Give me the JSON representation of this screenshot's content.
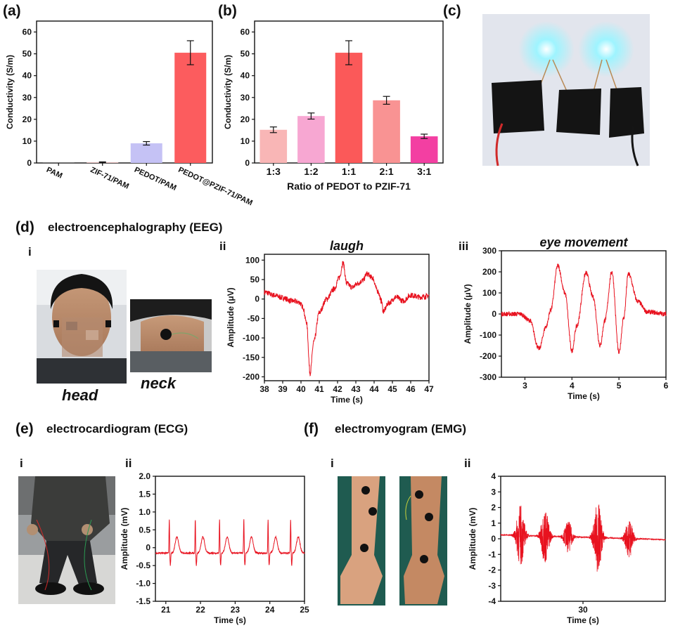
{
  "panels": {
    "a": "(a)",
    "b": "(b)",
    "c": "(c)",
    "d": "(d)",
    "e": "(e)",
    "f": "(f)"
  },
  "headings": {
    "d": "electroencephalography (EEG)",
    "e": "electrocardiogram (ECG)",
    "f": "electromyogram (EMG)"
  },
  "sublabels": {
    "d_i": "i",
    "d_ii": "ii",
    "d_iii": "iii",
    "e_i": "i",
    "e_ii": "ii",
    "f_i": "i",
    "f_ii": "ii"
  },
  "photo_captions": {
    "head": "head",
    "neck": "neck"
  },
  "colors": {
    "signal": "#e8121f",
    "bar_a": [
      "#cccccc",
      "#e5b9b9",
      "#c5c2f5",
      "#fc5c5e"
    ],
    "bar_b": [
      "#f9b6b6",
      "#f7a7d2",
      "#fb5959",
      "#f99393",
      "#f33fa2"
    ]
  },
  "chart_data": [
    {
      "id": "a",
      "type": "bar",
      "categories": [
        "PAM",
        "ZIF-71/PAM",
        "PEDOT/PAM",
        "PEDOT@PZIF-71/PAM"
      ],
      "values": [
        0.05,
        0.3,
        9.0,
        50.5
      ],
      "errors": [
        0,
        0.2,
        0.8,
        5.5
      ],
      "ylabel": "Conductivity (S/m)",
      "xlabel": "",
      "ylim": [
        0,
        65
      ],
      "yticks": [
        0,
        10,
        20,
        30,
        40,
        50,
        60
      ]
    },
    {
      "id": "b",
      "type": "bar",
      "categories": [
        "1:3",
        "1:2",
        "1:1",
        "2:1",
        "3:1"
      ],
      "values": [
        15.2,
        21.5,
        50.5,
        28.7,
        12.2
      ],
      "errors": [
        1.3,
        1.4,
        5.5,
        1.8,
        1.0
      ],
      "ylabel": "Conductivity (S/m)",
      "xlabel": "Ratio of PEDOT to PZIF-71",
      "ylim": [
        0,
        65
      ],
      "yticks": [
        0,
        10,
        20,
        30,
        40,
        50,
        60
      ]
    },
    {
      "id": "d_ii",
      "type": "line",
      "title": "laugh",
      "xlabel": "Time (s)",
      "ylabel": "Amplitude (μV)",
      "xlim": [
        38,
        47
      ],
      "ylim": [
        -210,
        115
      ],
      "xticks": [
        38,
        39,
        40,
        41,
        42,
        43,
        44,
        45,
        46,
        47
      ],
      "yticks": [
        -200,
        -150,
        -100,
        -50,
        0,
        50,
        100
      ],
      "keypoints": [
        [
          38,
          18
        ],
        [
          38.5,
          10
        ],
        [
          39,
          3
        ],
        [
          39.5,
          -5
        ],
        [
          39.9,
          -8
        ],
        [
          40.1,
          -20
        ],
        [
          40.3,
          -60
        ],
        [
          40.5,
          -190
        ],
        [
          40.7,
          -110
        ],
        [
          41,
          -35
        ],
        [
          41.4,
          0
        ],
        [
          41.8,
          25
        ],
        [
          42.1,
          55
        ],
        [
          42.3,
          93
        ],
        [
          42.5,
          40
        ],
        [
          42.8,
          30
        ],
        [
          43.1,
          40
        ],
        [
          43.4,
          48
        ],
        [
          43.6,
          65
        ],
        [
          43.9,
          55
        ],
        [
          44.2,
          20
        ],
        [
          44.4,
          -5
        ],
        [
          44.5,
          -32
        ],
        [
          44.8,
          -10
        ],
        [
          45.2,
          5
        ],
        [
          45.6,
          -5
        ],
        [
          46,
          10
        ],
        [
          46.5,
          5
        ],
        [
          47,
          8
        ]
      ]
    },
    {
      "id": "d_iii",
      "type": "line",
      "title": "eye movement",
      "xlabel": "Time (s)",
      "ylabel": "Amplitude (μV)",
      "xlim": [
        2.5,
        6
      ],
      "ylim": [
        -300,
        300
      ],
      "xticks": [
        3,
        4,
        5,
        6
      ],
      "yticks": [
        -300,
        -200,
        -100,
        0,
        100,
        200,
        300
      ],
      "keypoints": [
        [
          2.5,
          0
        ],
        [
          2.9,
          0
        ],
        [
          3.1,
          -30
        ],
        [
          3.3,
          -165
        ],
        [
          3.45,
          -60
        ],
        [
          3.55,
          20
        ],
        [
          3.7,
          230
        ],
        [
          3.85,
          100
        ],
        [
          4.0,
          -175
        ],
        [
          4.1,
          -60
        ],
        [
          4.3,
          195
        ],
        [
          4.45,
          80
        ],
        [
          4.6,
          -150
        ],
        [
          4.7,
          -30
        ],
        [
          4.85,
          200
        ],
        [
          5.0,
          -185
        ],
        [
          5.1,
          -20
        ],
        [
          5.2,
          190
        ],
        [
          5.4,
          60
        ],
        [
          5.6,
          10
        ],
        [
          6.0,
          0
        ]
      ]
    },
    {
      "id": "e_ii",
      "type": "line",
      "xlabel": "Time (s)",
      "ylabel": "Amplitude (mV)",
      "xlim": [
        20.7,
        25
      ],
      "ylim": [
        -1.5,
        2.0
      ],
      "xticks": [
        21,
        22,
        23,
        24,
        25
      ],
      "yticks": [
        -1.5,
        -1.0,
        -0.5,
        0,
        0.5,
        1.0,
        1.5,
        2.0
      ],
      "yticklabels": [
        "-1.5",
        "-1.0",
        "-0.5",
        "0",
        "0.5",
        "1.0",
        "1.5",
        "2.0"
      ],
      "beats": [
        21.1,
        21.85,
        22.55,
        23.25,
        23.95,
        24.6
      ],
      "beat_peak": 0.95,
      "beat_trough": -0.5,
      "t_wave": 0.45
    },
    {
      "id": "f_ii",
      "type": "line",
      "xlabel": "Time (s)",
      "ylabel": "Amplitude (mV)",
      "xlim": [
        0,
        100
      ],
      "ylim": [
        -4,
        4
      ],
      "xticks": [
        30
      ],
      "xtick_pos": [
        50
      ],
      "yticks": [
        -4,
        -3,
        -2,
        -1,
        0,
        1,
        2,
        3,
        4
      ],
      "bursts": [
        [
          12,
          2.0
        ],
        [
          27,
          1.8
        ],
        [
          41,
          1.0
        ],
        [
          59,
          2.3
        ],
        [
          78,
          1.2
        ]
      ]
    }
  ]
}
